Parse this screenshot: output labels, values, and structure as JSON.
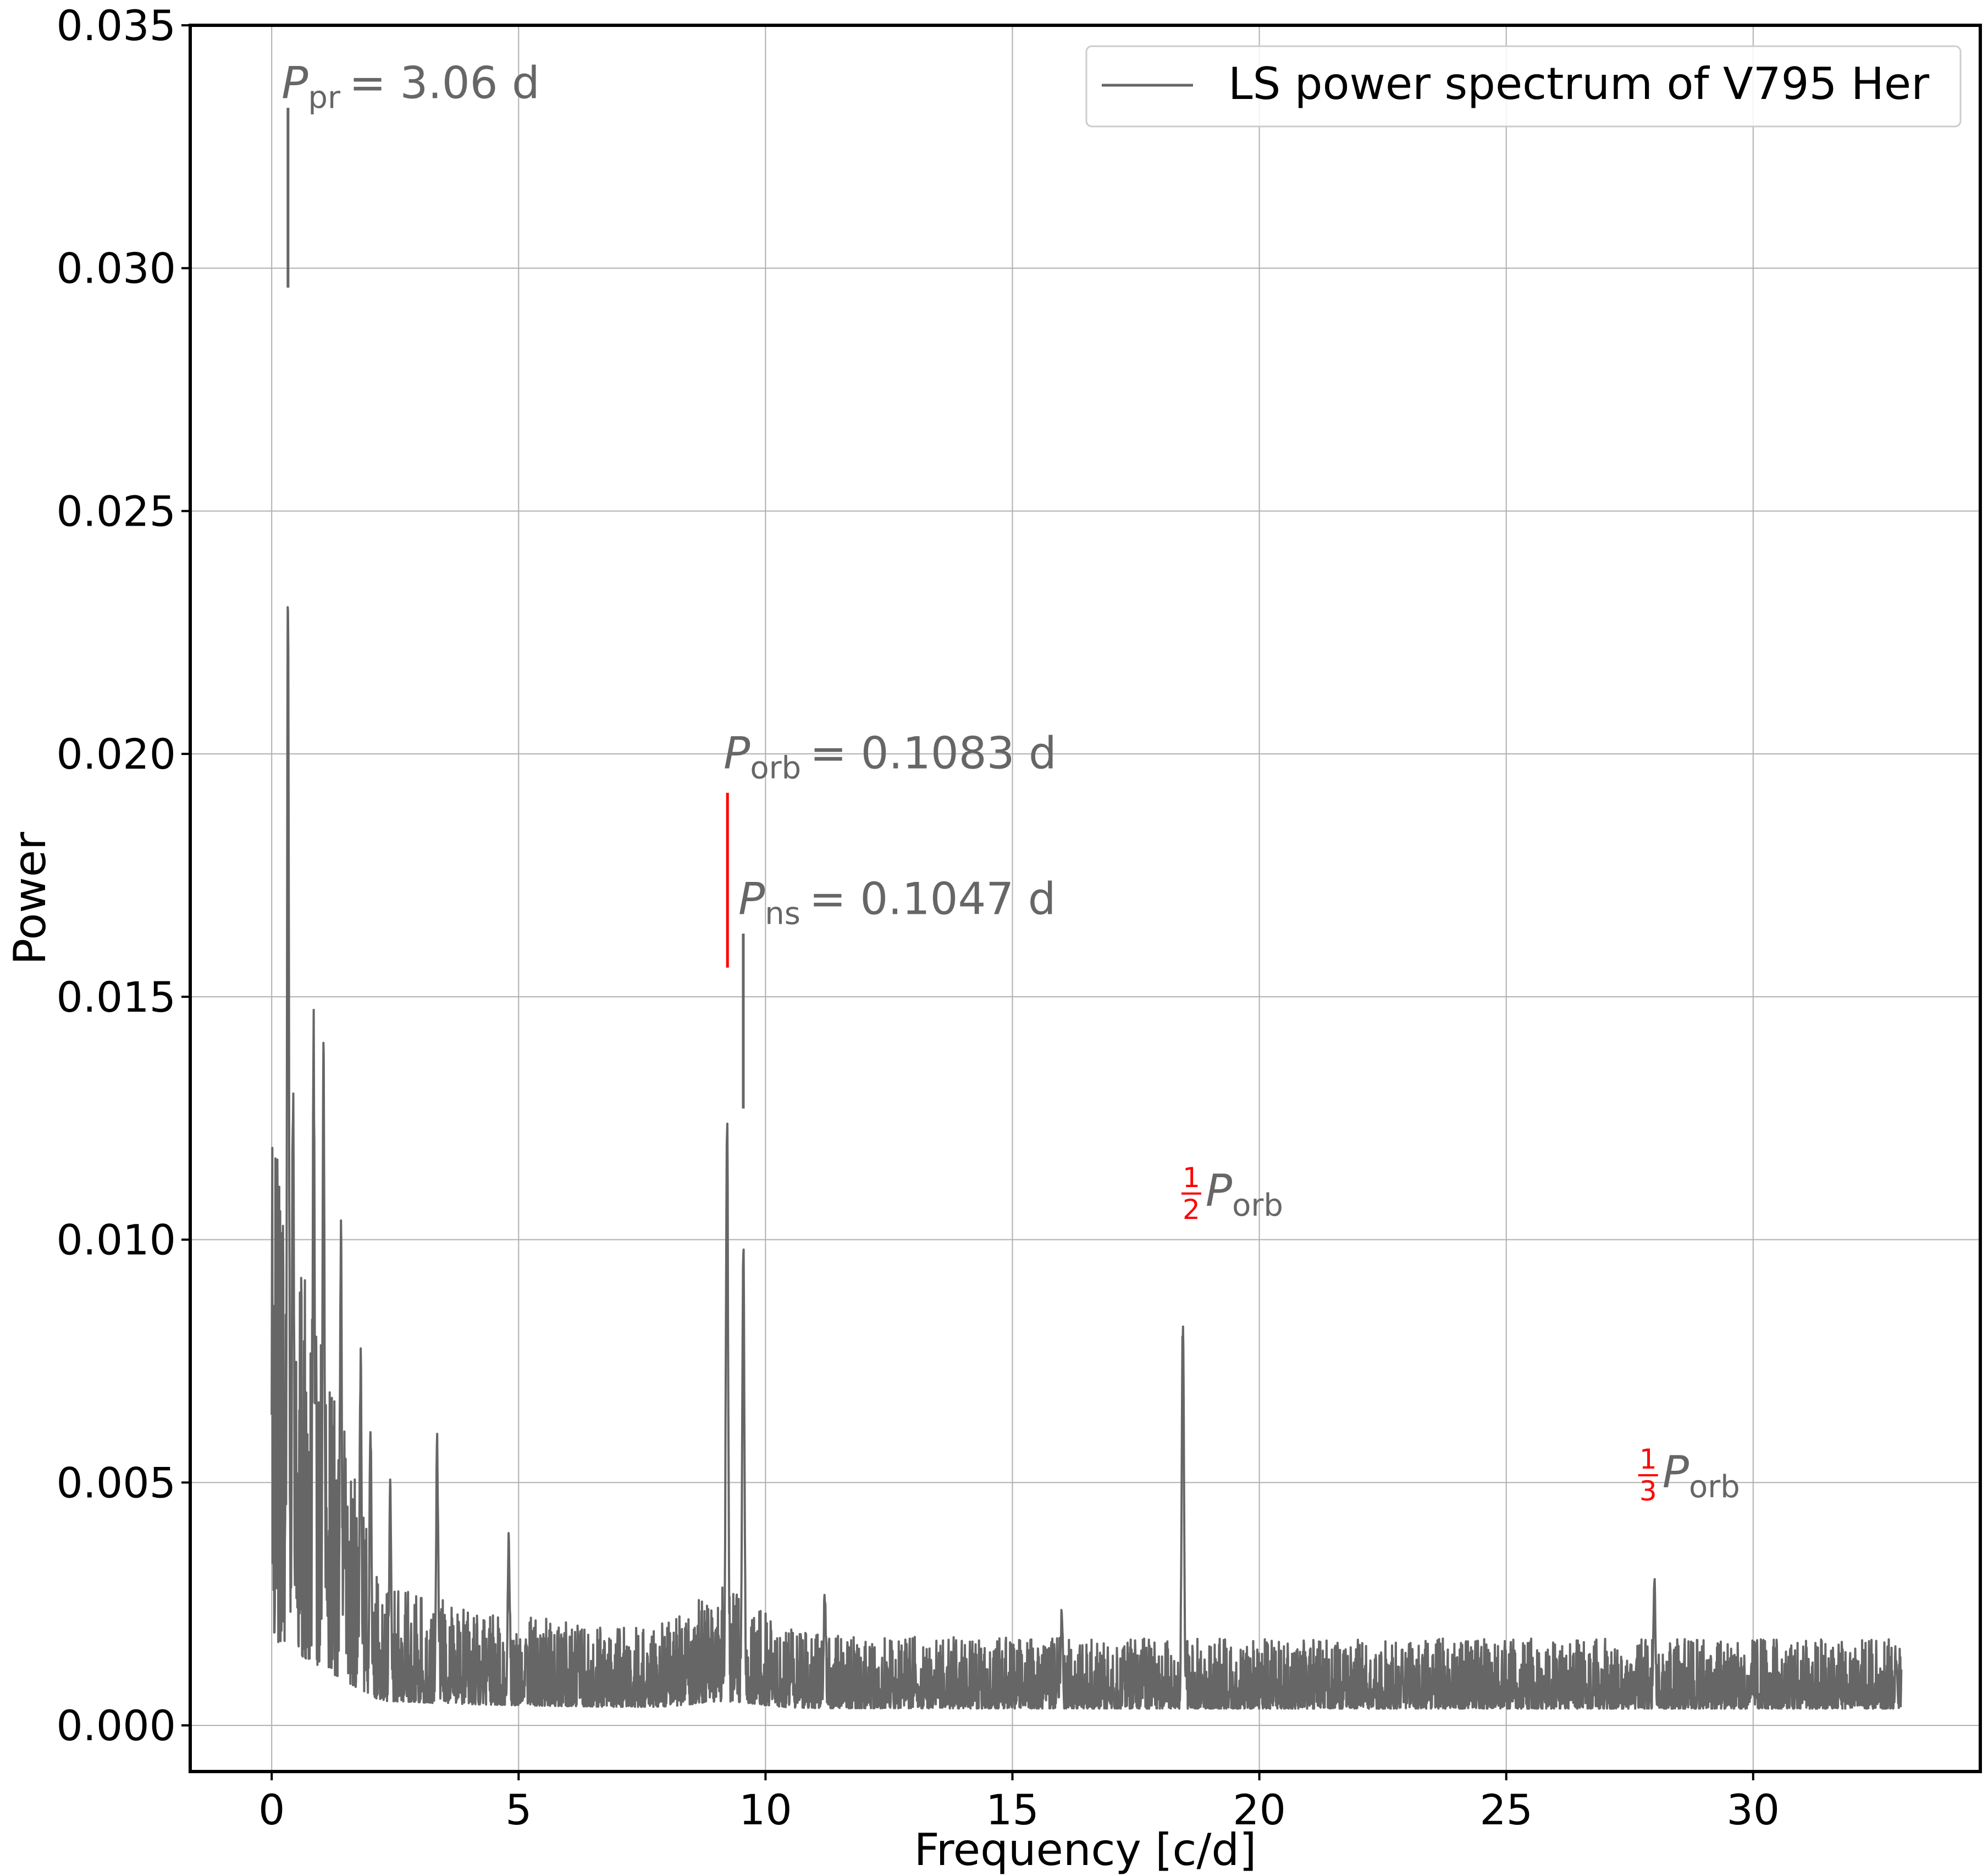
{
  "chart_data": {
    "type": "line",
    "title": "",
    "xlabel": "Frequency [c/d]",
    "ylabel": "Power",
    "xlim": [
      -1.65,
      34.6
    ],
    "ylim": [
      -0.00095,
      0.035
    ],
    "xticks": [
      0,
      5,
      10,
      15,
      20,
      25,
      30
    ],
    "xtick_labels": [
      "0",
      "5",
      "10",
      "15",
      "20",
      "25",
      "30"
    ],
    "yticks": [
      0.0,
      0.005,
      0.01,
      0.015,
      0.02,
      0.025,
      0.03,
      0.035
    ],
    "ytick_labels": [
      "0.000",
      "0.005",
      "0.010",
      "0.015",
      "0.020",
      "0.025",
      "0.030",
      "0.035"
    ],
    "grid": true,
    "legend": {
      "position": "top-right",
      "entries": [
        "LS power spectrum of V795 Her"
      ]
    },
    "series": [
      {
        "name": "LS power spectrum of V795 Her",
        "color": "#666666",
        "x_range": [
          0.0,
          33.0
        ],
        "peaks": [
          {
            "x": 0.33,
            "y": 0.0243
          },
          {
            "x": 0.43,
            "y": 0.0143
          },
          {
            "x": 0.85,
            "y": 0.0148
          },
          {
            "x": 1.05,
            "y": 0.0151
          },
          {
            "x": 1.4,
            "y": 0.011
          },
          {
            "x": 1.8,
            "y": 0.0082
          },
          {
            "x": 2.0,
            "y": 0.0066
          },
          {
            "x": 2.4,
            "y": 0.0054
          },
          {
            "x": 3.35,
            "y": 0.0061
          },
          {
            "x": 4.8,
            "y": 0.0041
          },
          {
            "x": 9.22,
            "y": 0.0136
          },
          {
            "x": 9.55,
            "y": 0.0106
          },
          {
            "x": 11.2,
            "y": 0.0029
          },
          {
            "x": 16.0,
            "y": 0.0025
          },
          {
            "x": 18.45,
            "y": 0.0088
          },
          {
            "x": 28.0,
            "y": 0.0032
          },
          {
            "x": 32.9,
            "y": 0.0014
          }
        ]
      }
    ],
    "annotations": [
      {
        "id": "pr",
        "color": "#666666",
        "symbol": "P",
        "subscript": "pr",
        "value_text": "= 3.06 d",
        "x": 0.33,
        "text_x": 0.2,
        "text_y": 0.0335,
        "marker": {
          "x": 0.33,
          "y_from": 0.0296,
          "y_to": 0.0333
        }
      },
      {
        "id": "orb",
        "color": "#ff0000",
        "symbol": "P",
        "subscript": "orb",
        "value_text": "= 0.1083 d",
        "x": 9.23,
        "text_x": 9.15,
        "text_y": 0.0197,
        "marker": {
          "x": 9.23,
          "y_from": 0.0156,
          "y_to": 0.0192
        }
      },
      {
        "id": "ns",
        "color": "#666666",
        "symbol": "P",
        "subscript": "ns",
        "value_text": "= 0.1047 d",
        "x": 9.55,
        "text_x": 9.45,
        "text_y": 0.0167,
        "marker": {
          "x": 9.55,
          "y_from": 0.0127,
          "y_to": 0.0163
        }
      },
      {
        "id": "half",
        "color": "#ff0000",
        "numerator": "1",
        "denominator": "2",
        "symbol": "P",
        "subscript": "orb",
        "text_x": 18.4,
        "text_y": 0.0107
      },
      {
        "id": "third",
        "color": "#ff0000",
        "numerator": "1",
        "denominator": "3",
        "symbol": "P",
        "subscript": "orb",
        "text_x": 27.65,
        "text_y": 0.0049
      }
    ]
  }
}
